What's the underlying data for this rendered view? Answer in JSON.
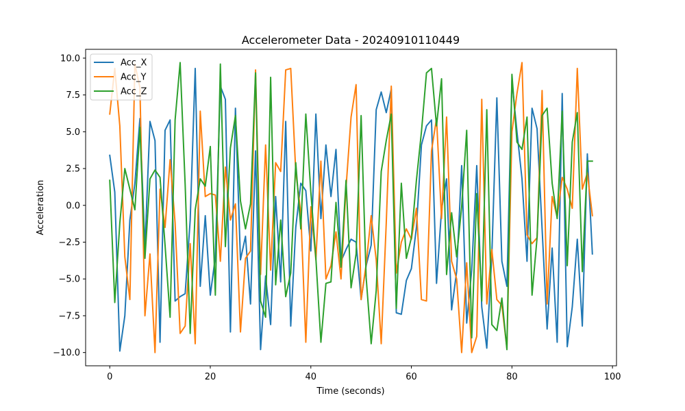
{
  "chart_data": {
    "type": "line",
    "title": "Accelerometer Data - 20240910110449",
    "xlabel": "Time (seconds)",
    "ylabel": "Acceleration",
    "xlim": [
      -4.8,
      100.8
    ],
    "ylim": [
      -10.9,
      10.6
    ],
    "xticks": [
      0,
      20,
      40,
      60,
      80,
      100
    ],
    "xtick_labels": [
      "0",
      "20",
      "40",
      "60",
      "80",
      "100"
    ],
    "yticks": [
      -10,
      -7.5,
      -5,
      -2.5,
      0,
      2.5,
      5,
      7.5,
      10
    ],
    "ytick_labels": [
      "−10.0",
      "−7.5",
      "−5.0",
      "−2.5",
      "0.0",
      "2.5",
      "5.0",
      "7.5",
      "10.0"
    ],
    "grid": false,
    "legend_position": "upper-left",
    "x": [
      0,
      1,
      2,
      3,
      4,
      5,
      6,
      7,
      8,
      9,
      10,
      11,
      12,
      13,
      14,
      15,
      16,
      17,
      18,
      19,
      20,
      21,
      22,
      23,
      24,
      25,
      26,
      27,
      28,
      29,
      30,
      31,
      32,
      33,
      34,
      35,
      36,
      37,
      38,
      39,
      40,
      41,
      42,
      43,
      44,
      45,
      46,
      47,
      48,
      49,
      50,
      51,
      52,
      53,
      54,
      55,
      56,
      57,
      58,
      59,
      60,
      61,
      62,
      63,
      64,
      65,
      66,
      67,
      68,
      69,
      70,
      71,
      72,
      73,
      74,
      75,
      76,
      77,
      78,
      79,
      80,
      81,
      82,
      83,
      84,
      85,
      86,
      87,
      88,
      89,
      90,
      91,
      92,
      93,
      94,
      95,
      96
    ],
    "series": [
      {
        "name": "Acc_X",
        "color": "#1f77b4",
        "values": [
          3.4,
          0.9,
          -9.9,
          -7.5,
          -1.0,
          1.5,
          5.9,
          -2.9,
          5.7,
          4.4,
          -9.3,
          5.1,
          5.8,
          -6.5,
          -6.2,
          -6.0,
          -1.0,
          9.3,
          -5.5,
          -0.7,
          -6.1,
          -3.5,
          8.1,
          7.2,
          -8.6,
          6.6,
          -3.7,
          -2.1,
          -6.7,
          3.7,
          -9.8,
          -4.8,
          -8.1,
          0.6,
          -5.2,
          5.7,
          -8.2,
          -1.5,
          1.5,
          1.0,
          -3.1,
          6.2,
          -0.9,
          4.1,
          0.6,
          3.8,
          -3.8,
          -3.0,
          -2.3,
          -2.5,
          -6.4,
          -4.1,
          -2.7,
          6.5,
          7.7,
          6.3,
          7.9,
          -7.3,
          -7.4,
          -5.1,
          -4.3,
          -1.5,
          4.1,
          5.4,
          5.8,
          -5.3,
          -0.3,
          1.8,
          -7.1,
          -4.5,
          2.7,
          -8.0,
          -4.4,
          2.7,
          -6.9,
          -9.7,
          -3.4,
          7.3,
          -3.8,
          -5.5,
          8.5,
          5.0,
          1.8,
          -3.8,
          6.6,
          5.2,
          -1.6,
          -8.4,
          -2.9,
          -9.3,
          7.6,
          -9.6,
          -6.9,
          -2.3,
          -8.2,
          3.5,
          -3.3
        ]
      },
      {
        "name": "Acc_Y",
        "color": "#ff7f0e",
        "values": [
          6.2,
          9.3,
          5.4,
          -3.5,
          -6.4,
          9.6,
          8.0,
          -7.5,
          -3.3,
          -10.0,
          1.1,
          -1.5,
          3.1,
          -1.2,
          -8.7,
          -8.2,
          -2.6,
          -9.4,
          6.4,
          0.6,
          0.8,
          0.7,
          -3.8,
          2.6,
          -1.0,
          0.1,
          -8.6,
          -3.6,
          -3.1,
          9.2,
          -4.7,
          4.1,
          -4.4,
          2.9,
          2.3,
          9.2,
          9.3,
          2.3,
          -0.5,
          -9.3,
          -0.1,
          -3.7,
          3.0,
          -5.0,
          -4.1,
          -1.8,
          -5.0,
          1.2,
          6.0,
          8.2,
          -6.4,
          -4.0,
          -0.7,
          -3.7,
          -9.4,
          -1.2,
          8.1,
          -4.6,
          -2.5,
          -1.6,
          -2.3,
          -0.2,
          -6.4,
          -6.5,
          3.7,
          5.9,
          -0.9,
          6.0,
          -3.8,
          -5.0,
          -10.0,
          -3.9,
          -10.0,
          -8.9,
          7.2,
          -6.7,
          -3.0,
          -6.4,
          -6.8,
          -9.7,
          5.0,
          7.6,
          9.7,
          -2.0,
          -2.6,
          -2.2,
          7.8,
          -6.7,
          0.6,
          -0.8,
          1.9,
          1.1,
          -0.2,
          9.3,
          1.1,
          2.2,
          -0.7
        ]
      },
      {
        "name": "Acc_Z",
        "color": "#2ca02c",
        "values": [
          1.7,
          -6.6,
          -1.2,
          2.5,
          1.1,
          -0.3,
          5.3,
          -3.6,
          1.8,
          2.4,
          1.9,
          -2.7,
          -7.6,
          5.8,
          9.7,
          1.4,
          -8.7,
          -0.3,
          1.8,
          1.3,
          4.0,
          -6.1,
          9.6,
          -2.8,
          3.9,
          6.1,
          0.3,
          -1.6,
          0.1,
          9.0,
          -6.5,
          -7.6,
          8.7,
          -5.4,
          -1.0,
          -6.2,
          -4.6,
          2.9,
          -1.6,
          6.2,
          0.9,
          -3.6,
          -9.3,
          -5.3,
          -5.2,
          0.2,
          -4.2,
          1.7,
          -5.6,
          -3.3,
          6.1,
          -4.9,
          -9.4,
          -5.8,
          2.3,
          4.4,
          6.2,
          -7.0,
          1.5,
          -3.6,
          -2.2,
          1.7,
          5.0,
          9.0,
          9.3,
          5.4,
          8.6,
          -4.7,
          -0.5,
          -3.5,
          -0.1,
          5.1,
          -9.0,
          0.8,
          -6.5,
          6.5,
          -8.1,
          -8.5,
          -6.3,
          -9.8,
          8.9,
          4.3,
          3.8,
          6.0,
          -6.1,
          -2.2,
          6.1,
          6.6,
          1.5,
          -0.9,
          6.4,
          -4.1,
          4.3,
          6.3,
          -4.5,
          3.0,
          3.0
        ]
      }
    ]
  }
}
